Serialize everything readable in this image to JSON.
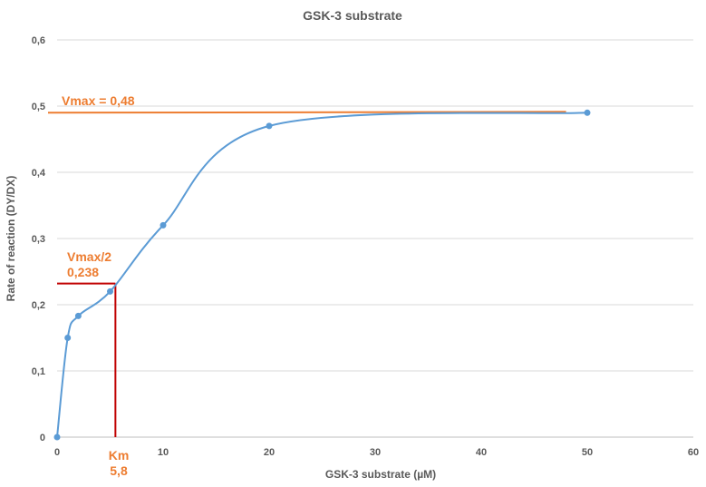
{
  "chart_data": {
    "type": "scatter",
    "title": "GSK-3 substrate",
    "xlabel": "GSK-3 substrate (µM)",
    "ylabel": "Rate of reaction (DY/DX)",
    "xlim": [
      0,
      60
    ],
    "ylim": [
      0,
      0.6
    ],
    "x_ticks": [
      0,
      10,
      20,
      30,
      40,
      50,
      60
    ],
    "y_ticks": [
      0,
      0.1,
      0.2,
      0.3,
      0.4,
      0.5,
      0.6
    ],
    "x_tick_labels": [
      "0",
      "10",
      "20",
      "30",
      "40",
      "50",
      "60"
    ],
    "y_tick_labels": [
      "0",
      "0,1",
      "0,2",
      "0,3",
      "0,4",
      "0,5",
      "0,6"
    ],
    "grid": "horizontal",
    "legend": "none",
    "series": [
      {
        "x": [
          0,
          1,
          2,
          5,
          10,
          20,
          50
        ],
        "y": [
          0,
          0.15,
          0.183,
          0.22,
          0.32,
          0.47,
          0.49
        ],
        "color": "#5B9BD5",
        "smooth": true,
        "markers": true
      }
    ],
    "annotations": {
      "vmax": {
        "label": "Vmax = 0,48",
        "y": 0.49,
        "x_start": 0,
        "x_end": 48,
        "color": "#ED7D31"
      },
      "half_vmax": {
        "label_line1": "Vmax/2",
        "label_line2": "0,238",
        "y": 0.232,
        "color": "#C00000"
      },
      "km": {
        "label_line1": "Km",
        "label_line2": "5,8",
        "x": 5.5,
        "color": "#C00000"
      }
    },
    "label_color": "#ED7D31"
  }
}
